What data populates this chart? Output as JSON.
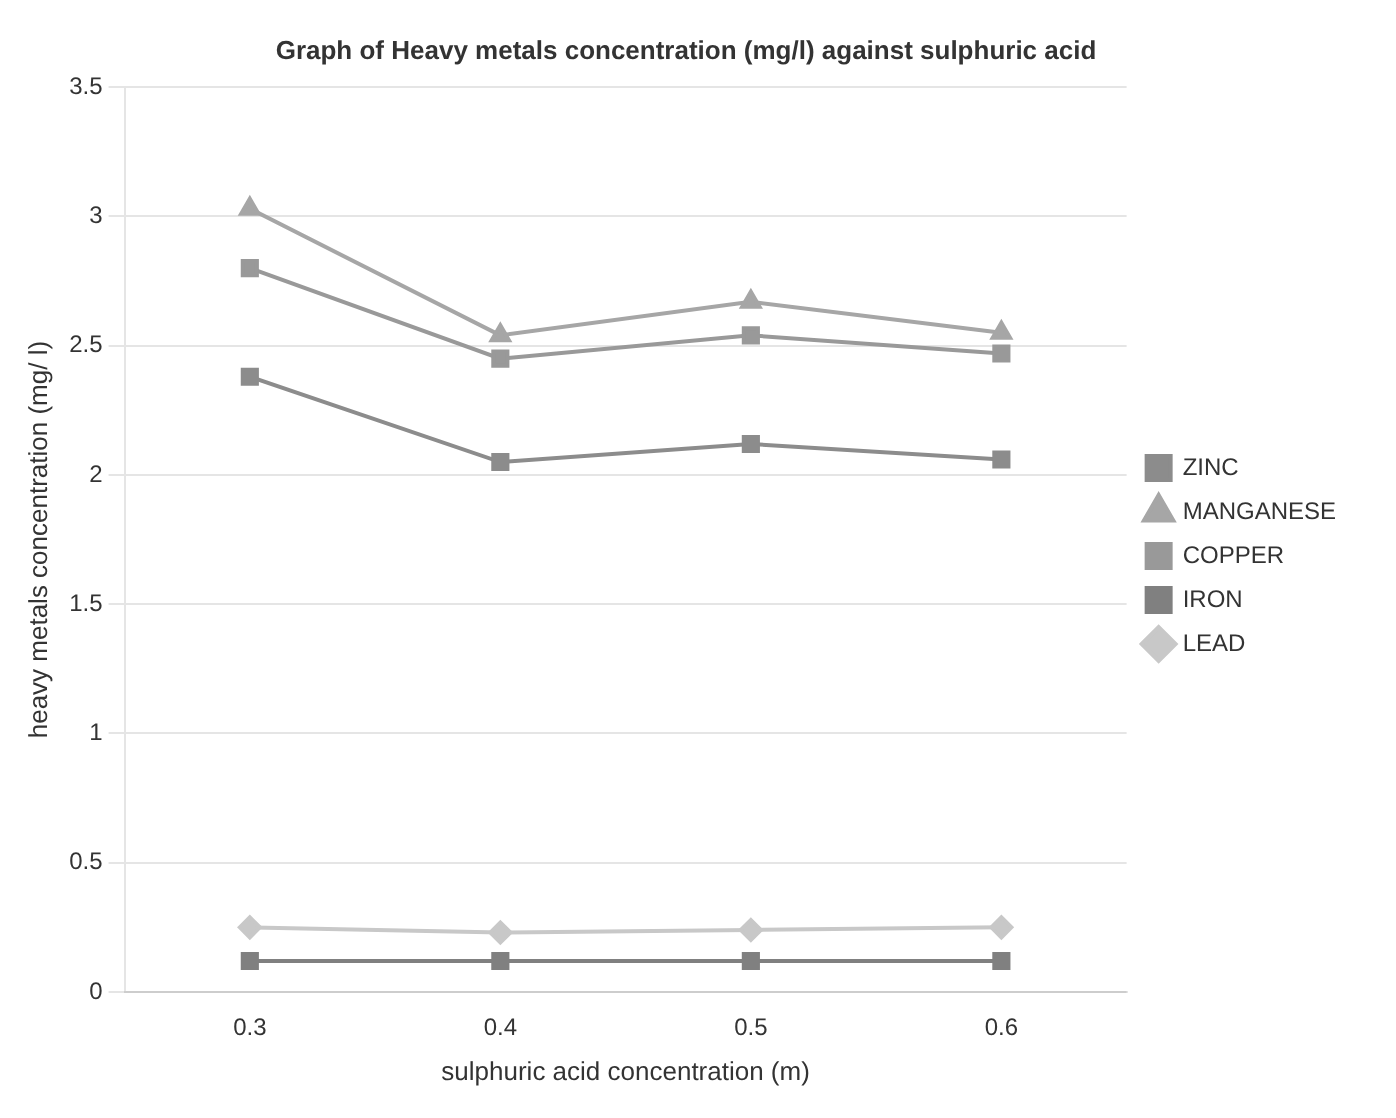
{
  "chart_data": {
    "type": "line",
    "title": "Graph of Heavy metals concentration (mg/l) against sulphuric acid",
    "xlabel": "sulphuric acid concentration (m)",
    "ylabel": "heavy metals concentration (mg/ l)",
    "categories": [
      "0.3",
      "0.4",
      "0.5",
      "0.6"
    ],
    "series": [
      {
        "name": "ZINC",
        "color": "#8c8c8c",
        "marker": "square",
        "values": [
          2.38,
          2.05,
          2.12,
          2.06
        ]
      },
      {
        "name": "MANGANESE",
        "color": "#a6a6a6",
        "marker": "triangle",
        "values": [
          3.03,
          2.54,
          2.67,
          2.55
        ]
      },
      {
        "name": "COPPER",
        "color": "#999999",
        "marker": "square",
        "values": [
          2.8,
          2.45,
          2.54,
          2.47
        ]
      },
      {
        "name": "IRON",
        "color": "#808080",
        "marker": "square",
        "values": [
          0.12,
          0.12,
          0.12,
          0.12
        ]
      },
      {
        "name": "LEAD",
        "color": "#c8c8c8",
        "marker": "diamond",
        "values": [
          0.25,
          0.23,
          0.24,
          0.25
        ]
      }
    ],
    "ylim": [
      0,
      3.5
    ],
    "yticks": [
      0,
      0.5,
      1,
      1.5,
      2,
      2.5,
      3,
      3.5
    ],
    "grid": "y",
    "legend": "right"
  }
}
